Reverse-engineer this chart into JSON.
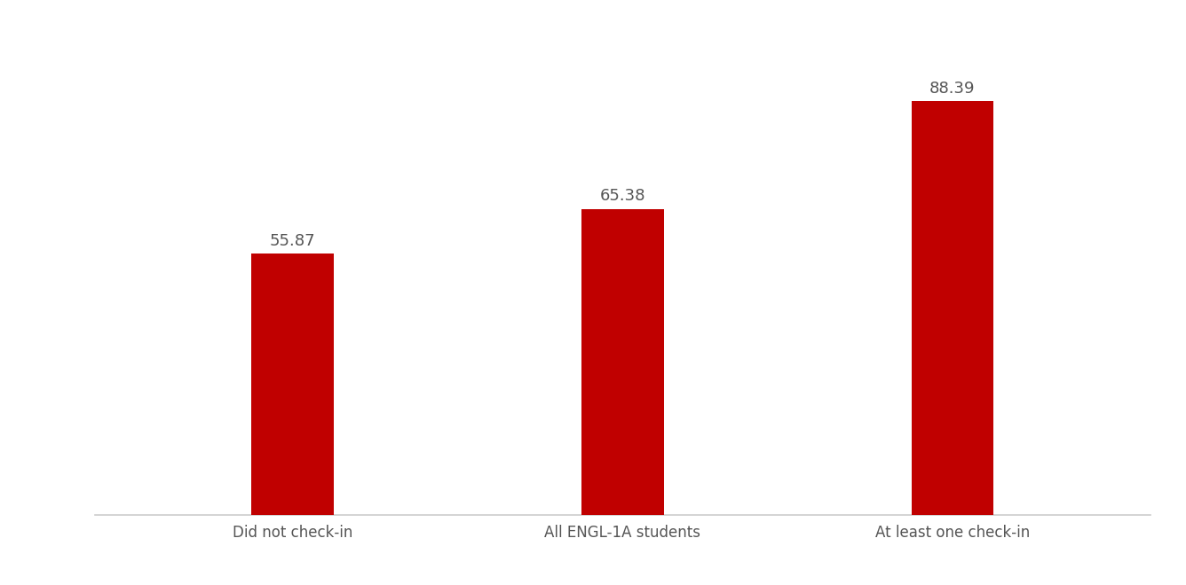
{
  "categories": [
    "Did not check-in",
    "All ENGL-1A students",
    "At least one check-in"
  ],
  "values": [
    55.87,
    65.38,
    88.39
  ],
  "bar_color": "#C00000",
  "ylabel_fontsize": 13,
  "value_label_fontsize": 13,
  "tick_label_fontsize": 12,
  "ylim": [
    0,
    100
  ],
  "bar_width": 0.25,
  "background_color": "#ffffff",
  "spine_color": "#cccccc",
  "label_color": "#555555"
}
